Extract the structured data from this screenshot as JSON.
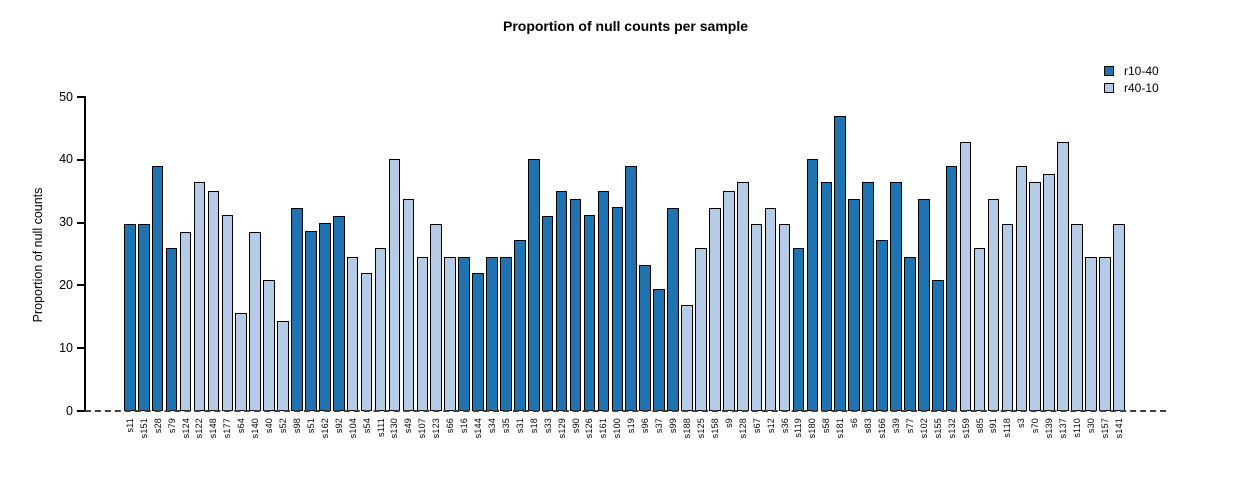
{
  "chart_data": {
    "type": "bar",
    "title": "Proportion of null counts per sample",
    "xlabel": "",
    "ylabel": "Proportion of null counts",
    "ylim": [
      0,
      50
    ],
    "yticks": [
      0,
      10,
      20,
      30,
      40,
      50
    ],
    "grid": false,
    "legend_position": "top-right",
    "legend": [
      {
        "name": "r10-40",
        "color": "#1F73B1"
      },
      {
        "name": "r40-10",
        "color": "#B5CBE6"
      }
    ],
    "zero_line_style": "dashed",
    "bars": [
      {
        "label": "s11",
        "value": 29.8,
        "group": "r10-40"
      },
      {
        "label": "s151",
        "value": 29.8,
        "group": "r10-40"
      },
      {
        "label": "s28",
        "value": 39.0,
        "group": "r10-40"
      },
      {
        "label": "s79",
        "value": 25.9,
        "group": "r10-40"
      },
      {
        "label": "s124",
        "value": 28.5,
        "group": "r40-10"
      },
      {
        "label": "s122",
        "value": 36.4,
        "group": "r40-10"
      },
      {
        "label": "s148",
        "value": 35.0,
        "group": "r40-10"
      },
      {
        "label": "s177",
        "value": 31.2,
        "group": "r40-10"
      },
      {
        "label": "s64",
        "value": 15.6,
        "group": "r40-10"
      },
      {
        "label": "s140",
        "value": 28.5,
        "group": "r40-10"
      },
      {
        "label": "s40",
        "value": 20.8,
        "group": "r40-10"
      },
      {
        "label": "s52",
        "value": 14.4,
        "group": "r40-10"
      },
      {
        "label": "s98",
        "value": 32.4,
        "group": "r10-40"
      },
      {
        "label": "s51",
        "value": 28.6,
        "group": "r10-40"
      },
      {
        "label": "s162",
        "value": 29.9,
        "group": "r10-40"
      },
      {
        "label": "s92",
        "value": 31.1,
        "group": "r10-40"
      },
      {
        "label": "s104",
        "value": 24.6,
        "group": "r40-10"
      },
      {
        "label": "s54",
        "value": 22.0,
        "group": "r40-10"
      },
      {
        "label": "s111",
        "value": 26.0,
        "group": "r40-10"
      },
      {
        "label": "s130",
        "value": 40.2,
        "group": "r40-10"
      },
      {
        "label": "s49",
        "value": 33.7,
        "group": "r40-10"
      },
      {
        "label": "s107",
        "value": 24.5,
        "group": "r40-10"
      },
      {
        "label": "s123",
        "value": 29.8,
        "group": "r40-10"
      },
      {
        "label": "s66",
        "value": 24.5,
        "group": "r40-10"
      },
      {
        "label": "s16",
        "value": 24.5,
        "group": "r10-40"
      },
      {
        "label": "s144",
        "value": 22.0,
        "group": "r10-40"
      },
      {
        "label": "s34",
        "value": 24.5,
        "group": "r10-40"
      },
      {
        "label": "s35",
        "value": 24.5,
        "group": "r10-40"
      },
      {
        "label": "s31",
        "value": 27.3,
        "group": "r10-40"
      },
      {
        "label": "s18",
        "value": 40.2,
        "group": "r10-40"
      },
      {
        "label": "s33",
        "value": 31.1,
        "group": "r10-40"
      },
      {
        "label": "s129",
        "value": 35.0,
        "group": "r10-40"
      },
      {
        "label": "s90",
        "value": 33.7,
        "group": "r10-40"
      },
      {
        "label": "s126",
        "value": 31.2,
        "group": "r10-40"
      },
      {
        "label": "s161",
        "value": 35.0,
        "group": "r10-40"
      },
      {
        "label": "s100",
        "value": 32.5,
        "group": "r10-40"
      },
      {
        "label": "s19",
        "value": 39.0,
        "group": "r10-40"
      },
      {
        "label": "s96",
        "value": 23.3,
        "group": "r10-40"
      },
      {
        "label": "s37",
        "value": 19.5,
        "group": "r10-40"
      },
      {
        "label": "s99",
        "value": 32.4,
        "group": "r10-40"
      },
      {
        "label": "s188",
        "value": 16.9,
        "group": "r40-10"
      },
      {
        "label": "s125",
        "value": 25.9,
        "group": "r40-10"
      },
      {
        "label": "s158",
        "value": 32.4,
        "group": "r40-10"
      },
      {
        "label": "s9",
        "value": 35.1,
        "group": "r40-10"
      },
      {
        "label": "s128",
        "value": 36.4,
        "group": "r40-10"
      },
      {
        "label": "s67",
        "value": 29.8,
        "group": "r40-10"
      },
      {
        "label": "s12",
        "value": 32.4,
        "group": "r40-10"
      },
      {
        "label": "s36",
        "value": 29.8,
        "group": "r40-10"
      },
      {
        "label": "s119",
        "value": 26.0,
        "group": "r10-40"
      },
      {
        "label": "s180",
        "value": 40.2,
        "group": "r10-40"
      },
      {
        "label": "s58",
        "value": 36.4,
        "group": "r10-40"
      },
      {
        "label": "s181",
        "value": 46.9,
        "group": "r10-40"
      },
      {
        "label": "s6",
        "value": 33.8,
        "group": "r10-40"
      },
      {
        "label": "s83",
        "value": 36.4,
        "group": "r10-40"
      },
      {
        "label": "s166",
        "value": 27.3,
        "group": "r10-40"
      },
      {
        "label": "s39",
        "value": 36.4,
        "group": "r10-40"
      },
      {
        "label": "s77",
        "value": 24.6,
        "group": "r10-40"
      },
      {
        "label": "s102",
        "value": 33.8,
        "group": "r10-40"
      },
      {
        "label": "s155",
        "value": 20.9,
        "group": "r10-40"
      },
      {
        "label": "s132",
        "value": 39.0,
        "group": "r10-40"
      },
      {
        "label": "s159",
        "value": 42.9,
        "group": "r40-10"
      },
      {
        "label": "s85",
        "value": 25.9,
        "group": "r40-10"
      },
      {
        "label": "s91",
        "value": 33.7,
        "group": "r40-10"
      },
      {
        "label": "s118",
        "value": 29.8,
        "group": "r40-10"
      },
      {
        "label": "s3",
        "value": 39.0,
        "group": "r40-10"
      },
      {
        "label": "s70",
        "value": 36.5,
        "group": "r40-10"
      },
      {
        "label": "s139",
        "value": 37.7,
        "group": "r40-10"
      },
      {
        "label": "s137",
        "value": 42.9,
        "group": "r40-10"
      },
      {
        "label": "s110",
        "value": 29.8,
        "group": "r40-10"
      },
      {
        "label": "s30",
        "value": 24.5,
        "group": "r40-10"
      },
      {
        "label": "s157",
        "value": 24.5,
        "group": "r40-10"
      },
      {
        "label": "s141",
        "value": 29.8,
        "group": "r40-10"
      }
    ]
  }
}
